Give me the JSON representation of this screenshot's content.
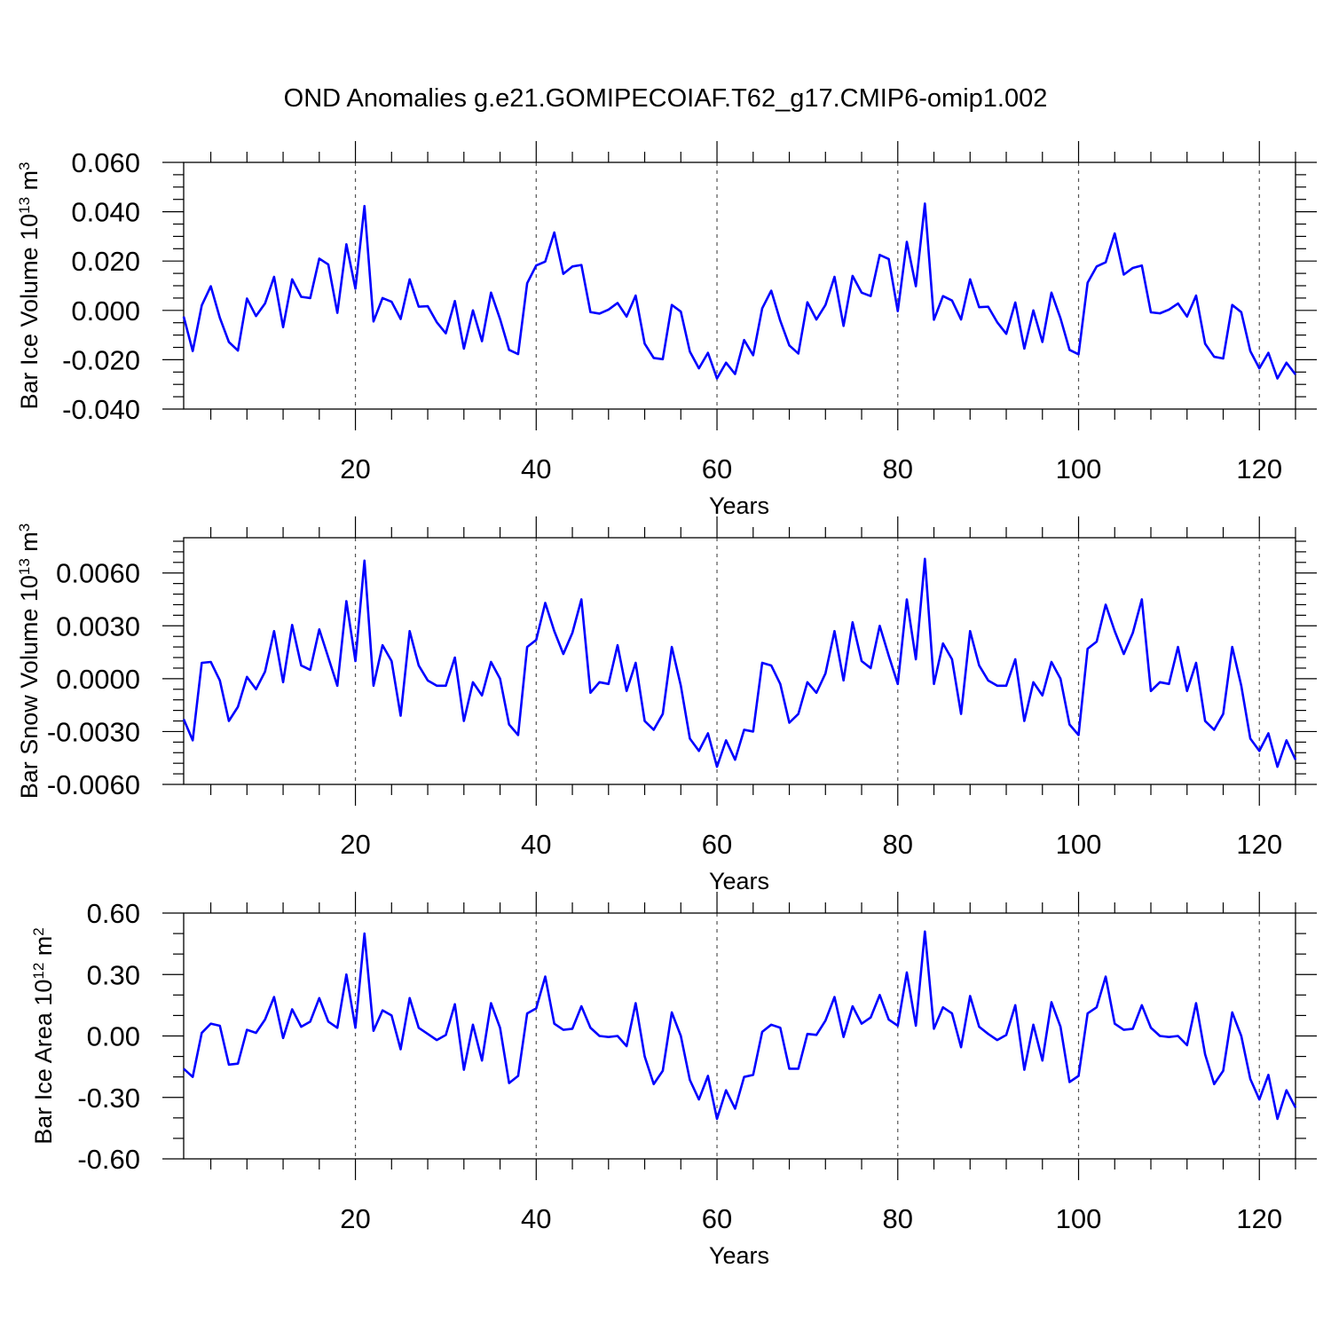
{
  "figure": {
    "title": "OND Anomalies g.e21.GOMIPECOIAF.T62_g17.CMIP6-omip1.002",
    "line_color": "#0000ff",
    "grid_color": "#555555"
  },
  "chart_data": [
    {
      "type": "line",
      "ylabel_main": "Bar Ice Volume 10",
      "ylabel_exp1": "13",
      "ylabel_unit": " m",
      "ylabel_exp2": "3",
      "xlabel": "Years",
      "xlim": [
        1,
        124
      ],
      "ylim": [
        -0.04,
        0.06
      ],
      "major_yticks": [
        -0.04,
        -0.02,
        0.0,
        0.02,
        0.04,
        0.06
      ],
      "ytick_labels": [
        "-0.040",
        "-0.020",
        "0.000",
        "0.020",
        "0.040",
        "0.060"
      ],
      "minor_ystep": 0.005,
      "xticks": [
        20,
        40,
        60,
        80,
        100,
        120
      ],
      "xtick_labels": [
        "20",
        "40",
        "60",
        "80",
        "100",
        "120"
      ],
      "minor_xstep": 4,
      "grid": "dashed vertical at major x ticks",
      "x_start": 1,
      "values": [
        -0.0025,
        -0.0165,
        0.002,
        0.0098,
        -0.003,
        -0.0128,
        -0.0163,
        0.0048,
        -0.0023,
        0.0028,
        0.0136,
        -0.0068,
        0.0126,
        0.0055,
        0.005,
        0.021,
        0.0186,
        -0.001,
        0.0268,
        0.0088,
        0.0423,
        -0.0045,
        0.005,
        0.0035,
        -0.0035,
        0.0126,
        0.0015,
        0.0017,
        -0.0048,
        -0.0093,
        0.0038,
        -0.0155,
        0.0,
        -0.0125,
        0.0072,
        -0.0035,
        -0.016,
        -0.0177,
        0.011,
        0.0182,
        0.0198,
        0.0316,
        0.0148,
        0.0178,
        0.0184,
        -0.0007,
        -0.0013,
        0.0003,
        0.003,
        -0.0025,
        0.006,
        -0.0135,
        -0.0193,
        -0.0198,
        0.0022,
        -0.0005,
        -0.0167,
        -0.0235,
        -0.0172,
        -0.0276,
        -0.0212,
        -0.0258,
        -0.012,
        -0.0182,
        0.0008,
        0.008,
        -0.0042,
        -0.0142,
        -0.0175,
        0.0033,
        -0.0037,
        0.0022,
        0.0136,
        -0.0063,
        0.014,
        0.0072,
        0.0058,
        0.0225,
        0.0208,
        -0.0003,
        0.0278,
        0.0098,
        0.0433,
        -0.0038,
        0.0058,
        0.004,
        -0.0037,
        0.0126,
        0.0013,
        0.0015,
        -0.0048,
        -0.0095,
        0.0032,
        -0.0155,
        0.0,
        -0.0128,
        0.0072,
        -0.0032,
        -0.016,
        -0.0178,
        0.0112,
        0.0178,
        0.0195,
        0.0312,
        0.0145,
        0.0172,
        0.0182,
        -0.0008,
        -0.0012,
        0.0003,
        0.0028,
        -0.0025,
        0.006,
        -0.0135,
        -0.0188,
        -0.0195,
        0.0022,
        -0.0007,
        -0.0165,
        -0.0235,
        -0.0172,
        -0.0276,
        -0.0212,
        -0.026
      ]
    },
    {
      "type": "line",
      "ylabel_main": "Bar Snow Volume 10",
      "ylabel_exp1": "13",
      "ylabel_unit": " m",
      "ylabel_exp2": "3",
      "xlabel": "Years",
      "xlim": [
        1,
        124
      ],
      "ylim": [
        -0.006,
        0.008
      ],
      "major_yticks": [
        -0.006,
        -0.003,
        0.0,
        0.003,
        0.006
      ],
      "ytick_labels": [
        "-0.0060",
        "-0.0030",
        "0.0000",
        "0.0030",
        "0.0060"
      ],
      "minor_ystep": 0.0006,
      "xticks": [
        20,
        40,
        60,
        80,
        100,
        120
      ],
      "xtick_labels": [
        "20",
        "40",
        "60",
        "80",
        "100",
        "120"
      ],
      "minor_xstep": 4,
      "grid": "dashed vertical at major x ticks",
      "x_start": 1,
      "values": [
        -0.0023,
        -0.0035,
        0.0009,
        0.00095,
        -0.0001,
        -0.0024,
        -0.0016,
        0.0001,
        -0.0006,
        0.0004,
        0.0027,
        -0.0002,
        0.00305,
        0.00075,
        0.0005,
        0.0028,
        0.0012,
        -0.0004,
        0.0044,
        0.001,
        0.0067,
        -0.0004,
        0.0019,
        0.001,
        -0.0021,
        0.0027,
        0.00075,
        -0.0001,
        -0.0004,
        -0.0004,
        0.0012,
        -0.0024,
        -0.0002,
        -0.00095,
        0.00095,
        0.0,
        -0.0026,
        -0.0032,
        0.0018,
        0.0022,
        0.0043,
        0.0027,
        0.0014,
        0.0026,
        0.0045,
        -0.0008,
        -0.0002,
        -0.0003,
        0.0019,
        -0.0007,
        0.0009,
        -0.0024,
        -0.0029,
        -0.002,
        0.0018,
        -0.0004,
        -0.0034,
        -0.0041,
        -0.0031,
        -0.005,
        -0.0035,
        -0.0046,
        -0.0029,
        -0.003,
        0.0009,
        0.00075,
        -0.0003,
        -0.0025,
        -0.002,
        -0.0002,
        -0.0008,
        0.0003,
        0.0027,
        -0.0001,
        0.0032,
        0.001,
        0.0006,
        0.003,
        0.0013,
        -0.0003,
        0.0045,
        0.0011,
        0.0068,
        -0.0003,
        0.002,
        0.0011,
        -0.002,
        0.0027,
        0.00075,
        -0.0001,
        -0.0004,
        -0.0004,
        0.0011,
        -0.0024,
        -0.0002,
        -0.00095,
        0.00095,
        0.0,
        -0.0026,
        -0.0032,
        0.0017,
        0.0021,
        0.0042,
        0.0027,
        0.0014,
        0.0026,
        0.0045,
        -0.0007,
        -0.0002,
        -0.0003,
        0.0018,
        -0.0007,
        0.0009,
        -0.0024,
        -0.0029,
        -0.002,
        0.0018,
        -0.0004,
        -0.0034,
        -0.0041,
        -0.0031,
        -0.005,
        -0.0035,
        -0.0046
      ]
    },
    {
      "type": "line",
      "ylabel_main": "Bar Ice Area 10",
      "ylabel_exp1": "12",
      "ylabel_unit": " m",
      "ylabel_exp2": "2",
      "xlabel": "Years",
      "xlim": [
        1,
        124
      ],
      "ylim": [
        -0.6,
        0.6
      ],
      "major_yticks": [
        -0.6,
        -0.3,
        0.0,
        0.3,
        0.6
      ],
      "ytick_labels": [
        "-0.60",
        "-0.30",
        "0.00",
        "0.30",
        "0.60"
      ],
      "minor_ystep": 0.1,
      "xticks": [
        20,
        40,
        60,
        80,
        100,
        120
      ],
      "xtick_labels": [
        "20",
        "40",
        "60",
        "80",
        "100",
        "120"
      ],
      "minor_xstep": 4,
      "grid": "dashed vertical at major x ticks",
      "x_start": 1,
      "values": [
        -0.16,
        -0.2,
        0.015,
        0.06,
        0.05,
        -0.14,
        -0.135,
        0.03,
        0.015,
        0.08,
        0.19,
        -0.01,
        0.13,
        0.045,
        0.07,
        0.185,
        0.07,
        0.04,
        0.3,
        0.04,
        0.5,
        0.025,
        0.125,
        0.1,
        -0.065,
        0.185,
        0.04,
        0.01,
        -0.02,
        0.005,
        0.155,
        -0.165,
        0.055,
        -0.12,
        0.16,
        0.04,
        -0.23,
        -0.195,
        0.11,
        0.135,
        0.29,
        0.06,
        0.03,
        0.035,
        0.145,
        0.04,
        0.0,
        -0.005,
        0.0,
        -0.05,
        0.16,
        -0.1,
        -0.235,
        -0.17,
        0.115,
        0.0,
        -0.215,
        -0.31,
        -0.195,
        -0.405,
        -0.265,
        -0.355,
        -0.2,
        -0.19,
        0.02,
        0.055,
        0.04,
        -0.16,
        -0.16,
        0.01,
        0.005,
        0.075,
        0.19,
        -0.005,
        0.145,
        0.06,
        0.09,
        0.2,
        0.08,
        0.05,
        0.31,
        0.05,
        0.51,
        0.035,
        0.14,
        0.11,
        -0.055,
        0.195,
        0.045,
        0.01,
        -0.02,
        0.005,
        0.15,
        -0.165,
        0.055,
        -0.12,
        0.165,
        0.045,
        -0.225,
        -0.195,
        0.11,
        0.14,
        0.29,
        0.06,
        0.03,
        0.035,
        0.15,
        0.04,
        0.0,
        -0.005,
        0.0,
        -0.045,
        0.16,
        -0.09,
        -0.235,
        -0.17,
        0.115,
        0.0,
        -0.21,
        -0.31,
        -0.19,
        -0.405,
        -0.265,
        -0.35
      ]
    }
  ]
}
